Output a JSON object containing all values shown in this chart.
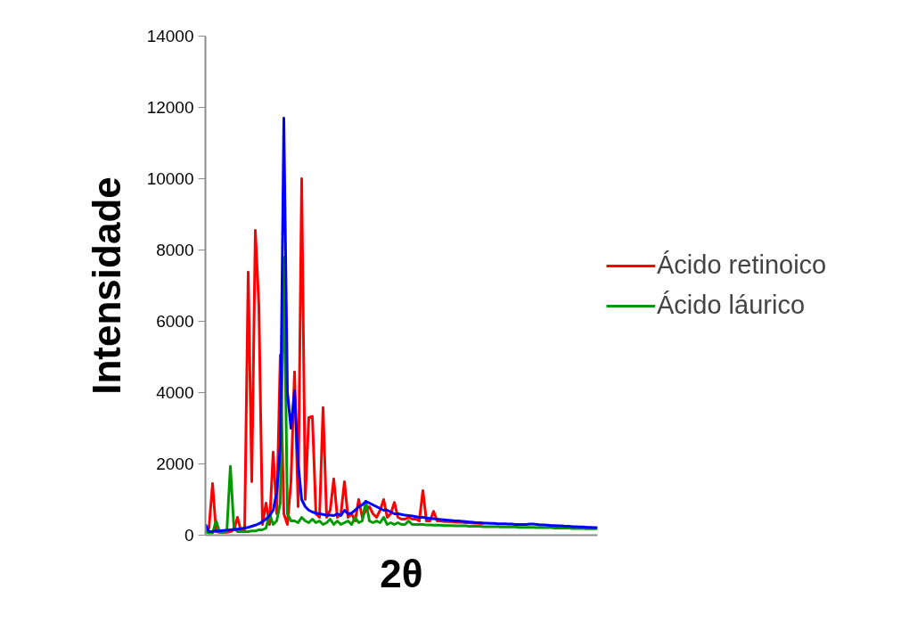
{
  "chart_data": {
    "type": "line",
    "xlabel": "2θ",
    "ylabel": "Intensidade",
    "categories": [
      null,
      null,
      null,
      null,
      null,
      null,
      null,
      null,
      null,
      null,
      null,
      null,
      null,
      null,
      null,
      null,
      null,
      null,
      null,
      null,
      null,
      null,
      null,
      null,
      null,
      null,
      null,
      null,
      null,
      null,
      null,
      null,
      null,
      null,
      null,
      null,
      null,
      null,
      null,
      null,
      null,
      null,
      null,
      null,
      null,
      null,
      null,
      null,
      null,
      null,
      null,
      null,
      null,
      null,
      null,
      null,
      null,
      null,
      null,
      null,
      null,
      null,
      null,
      null,
      null,
      null,
      null,
      null,
      null,
      null,
      null,
      null,
      null,
      null,
      null,
      null,
      null,
      null,
      null,
      null,
      null,
      null,
      null,
      null,
      null,
      null,
      null,
      null,
      null,
      null,
      null,
      null,
      null,
      null,
      null,
      null,
      null,
      null,
      null,
      null,
      null,
      null,
      null,
      null,
      null,
      null,
      null,
      null,
      null,
      null,
      null
    ],
    "series": [
      {
        "name": "Ácido retinoico",
        "color": "#ff0000",
        "values": [
          100,
          200,
          1450,
          100,
          80,
          80,
          80,
          100,
          150,
          500,
          100,
          150,
          7380,
          1500,
          8550,
          6430,
          300,
          900,
          300,
          2330,
          600,
          5050,
          600,
          300,
          1500,
          4580,
          800,
          10000,
          1000,
          3300,
          3330,
          600,
          500,
          3580,
          500,
          700,
          1580,
          500,
          600,
          1500,
          500,
          600,
          400,
          1000,
          500,
          700,
          800,
          600,
          500,
          700,
          1000,
          500,
          600,
          920,
          500,
          450,
          450,
          500,
          450,
          450,
          400,
          1250,
          400,
          400,
          670,
          400,
          400,
          380,
          380,
          380,
          370,
          360,
          360,
          350,
          350,
          340,
          340,
          330,
          330,
          null,
          null,
          null,
          null,
          null,
          null,
          null,
          null,
          null,
          null,
          null,
          null,
          null,
          null,
          null,
          null,
          null,
          null,
          null,
          null,
          null,
          null,
          null,
          null,
          null,
          null,
          null,
          null,
          null,
          null,
          null,
          null
        ]
      },
      {
        "name": "Ácido láurico",
        "color": "#009900",
        "values": [
          100,
          60,
          60,
          400,
          80,
          80,
          100,
          1930,
          200,
          100,
          100,
          100,
          100,
          120,
          120,
          150,
          150,
          200,
          600,
          300,
          400,
          900,
          7800,
          600,
          400,
          400,
          350,
          500,
          400,
          350,
          450,
          350,
          400,
          300,
          350,
          450,
          300,
          400,
          300,
          350,
          400,
          300,
          500,
          350,
          400,
          950,
          400,
          350,
          400,
          350,
          500,
          300,
          350,
          300,
          350,
          300,
          300,
          400,
          300,
          300,
          300,
          300,
          290,
          290,
          280,
          280,
          280,
          270,
          270,
          270,
          260,
          260,
          260,
          260,
          250,
          250,
          250,
          250,
          240,
          240,
          240,
          240,
          240,
          230,
          230,
          230,
          230,
          230,
          220,
          220,
          220,
          220,
          220,
          210,
          210,
          210,
          210,
          210,
          200,
          200,
          200,
          200,
          200,
          190,
          190,
          190,
          190,
          180,
          180,
          180,
          180
        ]
      },
      {
        "color": "#0000ff",
        "values": [
          300,
          100,
          100,
          120,
          120,
          130,
          140,
          150,
          160,
          170,
          180,
          200,
          220,
          250,
          280,
          320,
          380,
          450,
          550,
          700,
          1200,
          2500,
          11700,
          4000,
          3000,
          4050,
          2000,
          1000,
          800,
          700,
          650,
          620,
          600,
          580,
          560,
          560,
          550,
          600,
          550,
          700,
          600,
          620,
          700,
          800,
          850,
          950,
          900,
          850,
          800,
          750,
          700,
          700,
          650,
          600,
          600,
          580,
          560,
          550,
          540,
          520,
          500,
          500,
          480,
          470,
          460,
          450,
          440,
          430,
          420,
          410,
          400,
          400,
          390,
          380,
          370,
          360,
          350,
          350,
          340,
          340,
          330,
          330,
          320,
          320,
          320,
          310,
          310,
          300,
          300,
          300,
          300,
          310,
          310,
          300,
          290,
          290,
          280,
          270,
          270,
          260,
          260,
          250,
          250,
          240,
          240,
          230,
          230,
          220,
          220,
          210,
          210
        ]
      }
    ],
    "ylim": [
      0,
      14000
    ],
    "yticks": [
      0,
      2000,
      4000,
      6000,
      8000,
      10000,
      12000,
      14000
    ],
    "grid": false,
    "legend": "right",
    "tick_labels": "y",
    "marker": "none",
    "line_style": "solid"
  }
}
